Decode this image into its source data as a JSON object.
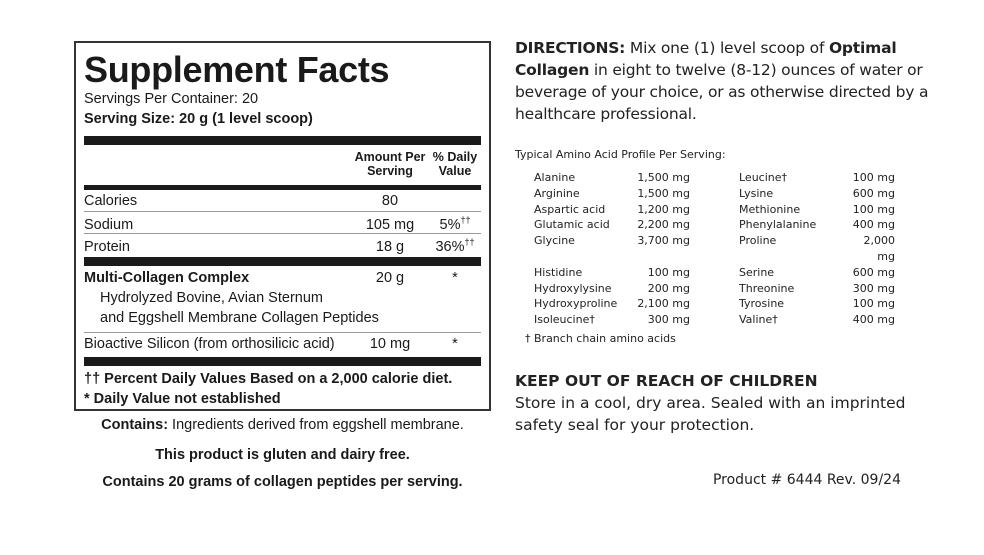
{
  "facts": {
    "title": "Supplement Facts",
    "servings_per_container": "Servings Per Container: 20",
    "serving_size": "Serving Size: 20 g (1 level scoop)",
    "col_amount": "Amount Per Serving",
    "col_dv": "% Daily Value",
    "rows": [
      {
        "name": "Calories",
        "amount": "80",
        "dv": ""
      },
      {
        "name": "Sodium",
        "amount": "105 mg",
        "dv": "5%",
        "mark": "††"
      },
      {
        "name": "Protein",
        "amount": "18 g",
        "dv": "36%",
        "mark": "††"
      }
    ],
    "complex": {
      "name": "Multi-Collagen Complex",
      "amount": "20 g",
      "dv": "*",
      "desc1": "Hydrolyzed Bovine, Avian Sternum",
      "desc2": "and Eggshell Membrane Collagen Peptides"
    },
    "silicon": {
      "name": "Bioactive Silicon (from orthosilicic acid)",
      "amount": "10 mg",
      "dv": "*"
    },
    "footnote1": "†† Percent Daily Values Based on a 2,000 calorie diet.",
    "footnote2": "* Daily Value not established"
  },
  "below": {
    "contains_label": "Contains:",
    "contains_text": " Ingredients derived from eggshell membrane.",
    "gluten": "This product is gluten and dairy free.",
    "collagen": "Contains 20 grams of collagen peptides per serving."
  },
  "directions": {
    "label": "DIRECTIONS:",
    "t1": " Mix one (1) level scoop of ",
    "product": "Optimal Collagen",
    "t2": " in eight to twelve (8-12) ounces of water or beverage of your choice, or as otherwise directed by a healthcare professional."
  },
  "amino": {
    "heading": "Typical Amino Acid Profile Per Serving:",
    "left": [
      [
        "Alanine",
        "1,500 mg"
      ],
      [
        "Arginine",
        "1,500 mg"
      ],
      [
        "Aspartic acid",
        "1,200 mg"
      ],
      [
        "Glutamic acid",
        "2,200 mg"
      ],
      [
        "Glycine",
        "3,700 mg"
      ],
      [
        "Histidine",
        "100 mg"
      ],
      [
        "Hydroxylysine",
        "200 mg"
      ],
      [
        "Hydroxyproline",
        "2,100 mg"
      ],
      [
        "Isoleucine†",
        "300 mg"
      ]
    ],
    "right": [
      [
        "Leucine†",
        "100 mg"
      ],
      [
        "Lysine",
        "600 mg"
      ],
      [
        "Methionine",
        "100 mg"
      ],
      [
        "Phenylalanine",
        "400 mg"
      ],
      [
        "Proline",
        "2,000 mg"
      ],
      [
        "Serine",
        "600 mg"
      ],
      [
        "Threonine",
        "300 mg"
      ],
      [
        "Tyrosine",
        "100 mg"
      ],
      [
        "Valine†",
        "400 mg"
      ]
    ],
    "footnote": "† Branch chain amino acids"
  },
  "warning": {
    "heading": "KEEP OUT OF REACH OF CHILDREN",
    "text": "Store in a cool, dry area. Sealed with an imprinted safety seal for your protection."
  },
  "product": "Product # 6444  Rev. 09/24"
}
